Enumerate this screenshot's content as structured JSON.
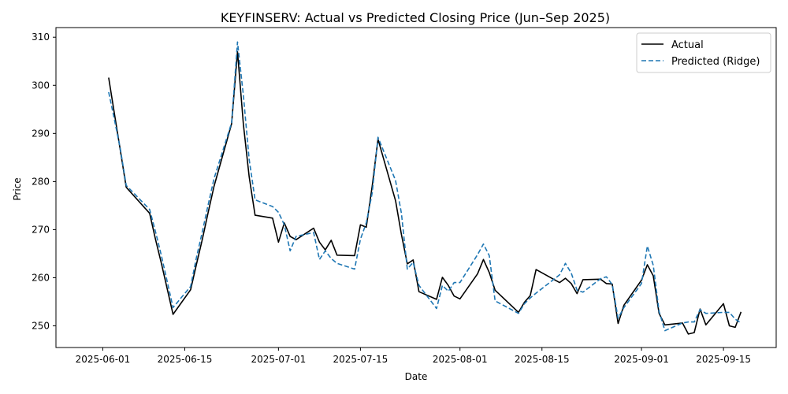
{
  "chart_data": {
    "type": "line",
    "title": "KEYFINSERV: Actual vs Predicted Closing Price (Jun–Sep 2025)",
    "xlabel": "Date",
    "ylabel": "Price",
    "x_ticks": [
      "2025-06-01",
      "2025-06-15",
      "2025-07-01",
      "2025-07-15",
      "2025-08-01",
      "2025-08-15",
      "2025-09-01",
      "2025-09-15"
    ],
    "y_ticks": [
      250,
      260,
      270,
      280,
      290,
      300,
      310
    ],
    "xlim": [
      "2025-05-24",
      "2025-09-24"
    ],
    "ylim": [
      245.5,
      312
    ],
    "grid": false,
    "legend_position": "top-right",
    "series": [
      {
        "name": "Actual",
        "color": "#000000",
        "dash": "solid",
        "points": [
          [
            "2025-06-02",
            301.6
          ],
          [
            "2025-06-03",
            294.0
          ],
          [
            "2025-06-04",
            286.5
          ],
          [
            "2025-06-05",
            278.8
          ],
          [
            "2025-06-09",
            273.4
          ],
          [
            "2025-06-10",
            268.0
          ],
          [
            "2025-06-11",
            263.0
          ],
          [
            "2025-06-13",
            252.4
          ],
          [
            "2025-06-16",
            257.5
          ],
          [
            "2025-06-17",
            262.8
          ],
          [
            "2025-06-18",
            268.0
          ],
          [
            "2025-06-19",
            273.6
          ],
          [
            "2025-06-20",
            279.0
          ],
          [
            "2025-06-23",
            292.0
          ],
          [
            "2025-06-24",
            307.0
          ],
          [
            "2025-06-25",
            292.0
          ],
          [
            "2025-06-26",
            281.0
          ],
          [
            "2025-06-27",
            273.0
          ],
          [
            "2025-06-30",
            272.4
          ],
          [
            "2025-07-01",
            267.4
          ],
          [
            "2025-07-02",
            271.4
          ],
          [
            "2025-07-03",
            268.6
          ],
          [
            "2025-07-04",
            267.9
          ],
          [
            "2025-07-07",
            270.3
          ],
          [
            "2025-07-08",
            267.4
          ],
          [
            "2025-07-09",
            265.8
          ],
          [
            "2025-07-10",
            267.8
          ],
          [
            "2025-07-11",
            264.7
          ],
          [
            "2025-07-14",
            264.6
          ],
          [
            "2025-07-15",
            271.0
          ],
          [
            "2025-07-16",
            270.5
          ],
          [
            "2025-07-17",
            279.0
          ],
          [
            "2025-07-18",
            288.8
          ],
          [
            "2025-07-21",
            276.0
          ],
          [
            "2025-07-22",
            269.0
          ],
          [
            "2025-07-23",
            262.9
          ],
          [
            "2025-07-24",
            263.7
          ],
          [
            "2025-07-25",
            257.1
          ],
          [
            "2025-07-28",
            255.5
          ],
          [
            "2025-07-29",
            260.1
          ],
          [
            "2025-07-30",
            258.4
          ],
          [
            "2025-07-31",
            256.2
          ],
          [
            "2025-08-01",
            255.6
          ],
          [
            "2025-08-04",
            260.8
          ],
          [
            "2025-08-05",
            263.8
          ],
          [
            "2025-08-06",
            261.1
          ],
          [
            "2025-08-07",
            257.4
          ],
          [
            "2025-08-11",
            252.8
          ],
          [
            "2025-08-12",
            254.9
          ],
          [
            "2025-08-13",
            256.3
          ],
          [
            "2025-08-14",
            261.7
          ],
          [
            "2025-08-18",
            259.0
          ],
          [
            "2025-08-19",
            259.9
          ],
          [
            "2025-08-20",
            258.8
          ],
          [
            "2025-08-21",
            256.7
          ],
          [
            "2025-08-22",
            259.6
          ],
          [
            "2025-08-25",
            259.7
          ],
          [
            "2025-08-26",
            258.8
          ],
          [
            "2025-08-27",
            258.7
          ],
          [
            "2025-08-28",
            250.5
          ],
          [
            "2025-08-29",
            254.3
          ],
          [
            "2025-09-01",
            259.5
          ],
          [
            "2025-09-02",
            262.7
          ],
          [
            "2025-09-03",
            260.4
          ],
          [
            "2025-09-04",
            252.6
          ],
          [
            "2025-09-05",
            250.2
          ],
          [
            "2025-09-08",
            250.6
          ],
          [
            "2025-09-09",
            248.3
          ],
          [
            "2025-09-10",
            248.6
          ],
          [
            "2025-09-11",
            253.5
          ],
          [
            "2025-09-12",
            250.2
          ],
          [
            "2025-09-15",
            254.6
          ],
          [
            "2025-09-16",
            250.0
          ],
          [
            "2025-09-17",
            249.7
          ],
          [
            "2025-09-18",
            252.9
          ]
        ]
      },
      {
        "name": "Predicted (Ridge)",
        "color": "#1f77b4",
        "dash": "dashed",
        "points": [
          [
            "2025-06-02",
            298.6
          ],
          [
            "2025-06-03",
            292.8
          ],
          [
            "2025-06-04",
            286.8
          ],
          [
            "2025-06-05",
            279.2
          ],
          [
            "2025-06-09",
            274.2
          ],
          [
            "2025-06-10",
            269.6
          ],
          [
            "2025-06-11",
            264.6
          ],
          [
            "2025-06-13",
            253.8
          ],
          [
            "2025-06-16",
            258.2
          ],
          [
            "2025-06-17",
            264.2
          ],
          [
            "2025-06-18",
            269.6
          ],
          [
            "2025-06-19",
            275.2
          ],
          [
            "2025-06-20",
            280.6
          ],
          [
            "2025-06-23",
            292.2
          ],
          [
            "2025-06-24",
            309.0
          ],
          [
            "2025-06-25",
            298.0
          ],
          [
            "2025-06-26",
            284.6
          ],
          [
            "2025-06-27",
            276.2
          ],
          [
            "2025-06-30",
            274.8
          ],
          [
            "2025-07-01",
            273.6
          ],
          [
            "2025-07-02",
            271.0
          ],
          [
            "2025-07-03",
            265.6
          ],
          [
            "2025-07-04",
            268.6
          ],
          [
            "2025-07-07",
            269.4
          ],
          [
            "2025-07-08",
            263.8
          ],
          [
            "2025-07-09",
            265.6
          ],
          [
            "2025-07-10",
            264.0
          ],
          [
            "2025-07-11",
            263.0
          ],
          [
            "2025-07-14",
            261.8
          ],
          [
            "2025-07-15",
            268.0
          ],
          [
            "2025-07-16",
            271.4
          ],
          [
            "2025-07-17",
            277.6
          ],
          [
            "2025-07-18",
            289.2
          ],
          [
            "2025-07-21",
            280.2
          ],
          [
            "2025-07-22",
            273.4
          ],
          [
            "2025-07-23",
            261.8
          ],
          [
            "2025-07-24",
            263.2
          ],
          [
            "2025-07-25",
            258.4
          ],
          [
            "2025-07-28",
            253.6
          ],
          [
            "2025-07-29",
            258.4
          ],
          [
            "2025-07-30",
            257.2
          ],
          [
            "2025-07-31",
            259.0
          ],
          [
            "2025-08-01",
            259.0
          ],
          [
            "2025-08-04",
            264.8
          ],
          [
            "2025-08-05",
            267.0
          ],
          [
            "2025-08-06",
            264.6
          ],
          [
            "2025-08-07",
            255.2
          ],
          [
            "2025-08-11",
            252.6
          ],
          [
            "2025-08-12",
            254.6
          ],
          [
            "2025-08-13",
            255.8
          ],
          [
            "2025-08-14",
            256.8
          ],
          [
            "2025-08-18",
            260.6
          ],
          [
            "2025-08-19",
            263.0
          ],
          [
            "2025-08-20",
            261.0
          ],
          [
            "2025-08-21",
            257.4
          ],
          [
            "2025-08-22",
            257.0
          ],
          [
            "2025-08-25",
            259.8
          ],
          [
            "2025-08-26",
            260.2
          ],
          [
            "2025-08-27",
            258.6
          ],
          [
            "2025-08-28",
            251.6
          ],
          [
            "2025-08-29",
            253.8
          ],
          [
            "2025-09-01",
            258.8
          ],
          [
            "2025-09-02",
            266.6
          ],
          [
            "2025-09-03",
            262.6
          ],
          [
            "2025-09-04",
            253.0
          ],
          [
            "2025-09-05",
            249.0
          ],
          [
            "2025-09-08",
            250.6
          ],
          [
            "2025-09-09",
            250.8
          ],
          [
            "2025-09-10",
            250.8
          ],
          [
            "2025-09-11",
            253.4
          ],
          [
            "2025-09-12",
            252.6
          ],
          [
            "2025-09-15",
            252.8
          ],
          [
            "2025-09-16",
            252.8
          ],
          [
            "2025-09-17",
            251.4
          ],
          [
            "2025-09-18",
            250.6
          ]
        ]
      }
    ]
  }
}
